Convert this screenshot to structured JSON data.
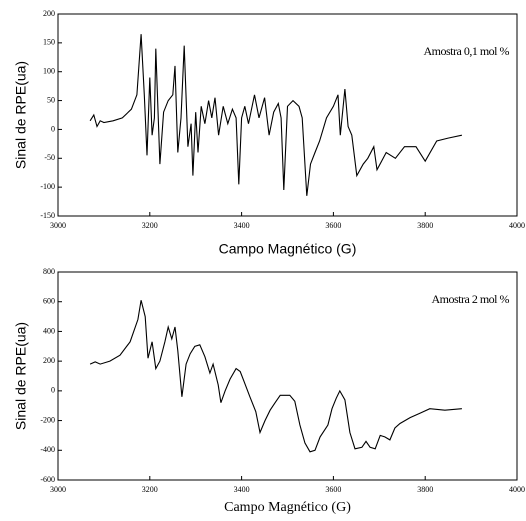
{
  "chart_data": [
    {
      "type": "line",
      "annotation": "Amostra 0,1 mol %",
      "xlabel": "Campo Magnético (G)",
      "ylabel": "Sinal de RPE(ua)",
      "xlim": [
        3000,
        4000
      ],
      "xticks": [
        3000,
        3200,
        3400,
        3600,
        3800,
        4000
      ],
      "ylim": [
        -150,
        200
      ],
      "yticks": [
        -150,
        -100,
        -50,
        0,
        50,
        100,
        150,
        200
      ],
      "x": [
        3070,
        3078,
        3085,
        3092,
        3100,
        3120,
        3140,
        3160,
        3172,
        3181,
        3188,
        3194,
        3200,
        3205,
        3210,
        3213,
        3222,
        3230,
        3240,
        3250,
        3255,
        3261,
        3268,
        3275,
        3283,
        3290,
        3294,
        3300,
        3305,
        3312,
        3320,
        3328,
        3335,
        3342,
        3350,
        3360,
        3370,
        3380,
        3388,
        3394,
        3400,
        3407,
        3415,
        3428,
        3438,
        3450,
        3460,
        3470,
        3480,
        3486,
        3492,
        3500,
        3512,
        3525,
        3532,
        3542,
        3550,
        3560,
        3570,
        3585,
        3600,
        3610,
        3615,
        3625,
        3632,
        3640,
        3651,
        3665,
        3675,
        3688,
        3695,
        3715,
        3735,
        3755,
        3780,
        3800,
        3825,
        3850,
        3880
      ],
      "series": [
        {
          "color": "#000000",
          "values": [
            15,
            25,
            5,
            15,
            12,
            15,
            20,
            35,
            60,
            165,
            60,
            -45,
            90,
            -10,
            20,
            140,
            -60,
            30,
            50,
            60,
            110,
            -40,
            20,
            145,
            -30,
            10,
            -80,
            30,
            -40,
            40,
            10,
            50,
            20,
            55,
            -10,
            40,
            10,
            35,
            20,
            -95,
            20,
            40,
            10,
            60,
            20,
            55,
            -10,
            30,
            45,
            20,
            -105,
            40,
            50,
            40,
            20,
            -115,
            -60,
            -40,
            -20,
            20,
            40,
            60,
            -10,
            70,
            5,
            -10,
            -80,
            -60,
            -50,
            -30,
            -70,
            -40,
            -50,
            -30,
            -30,
            -55,
            -20,
            -15,
            -10
          ]
        }
      ]
    },
    {
      "type": "line",
      "annotation": "Amostra 2 mol %",
      "xlabel": "Campo Magnético (G)",
      "ylabel": "Sinal de RPE(ua)",
      "xlim": [
        3000,
        4000
      ],
      "xticks": [
        3000,
        3200,
        3400,
        3600,
        3800,
        4000
      ],
      "ylim": [
        -600,
        800
      ],
      "yticks": [
        -600,
        -400,
        -200,
        0,
        200,
        400,
        600,
        800
      ],
      "x": [
        3070,
        3081,
        3092,
        3113,
        3135,
        3157,
        3174,
        3181,
        3190,
        3196,
        3205,
        3213,
        3222,
        3233,
        3240,
        3248,
        3255,
        3261,
        3270,
        3279,
        3288,
        3298,
        3309,
        3320,
        3331,
        3338,
        3349,
        3355,
        3364,
        3375,
        3388,
        3397,
        3407,
        3418,
        3431,
        3440,
        3451,
        3462,
        3473,
        3484,
        3505,
        3516,
        3527,
        3538,
        3549,
        3560,
        3571,
        3588,
        3597,
        3606,
        3614,
        3625,
        3636,
        3647,
        3662,
        3671,
        3680,
        3691,
        3702,
        3712,
        3723,
        3734,
        3745,
        3767,
        3789,
        3810,
        3843,
        3880
      ],
      "series": [
        {
          "color": "#000000",
          "values": [
            180,
            195,
            180,
            200,
            240,
            330,
            480,
            610,
            500,
            220,
            330,
            150,
            200,
            330,
            430,
            350,
            430,
            270,
            -40,
            180,
            250,
            300,
            310,
            230,
            120,
            180,
            40,
            -80,
            0,
            80,
            150,
            130,
            50,
            -40,
            -140,
            -280,
            -200,
            -130,
            -80,
            -30,
            -30,
            -70,
            -230,
            -350,
            -410,
            -400,
            -310,
            -230,
            -120,
            -50,
            0,
            -60,
            -280,
            -390,
            -380,
            -340,
            -380,
            -390,
            -300,
            -310,
            -330,
            -250,
            -220,
            -180,
            -150,
            -120,
            -130,
            -120
          ]
        }
      ]
    }
  ]
}
